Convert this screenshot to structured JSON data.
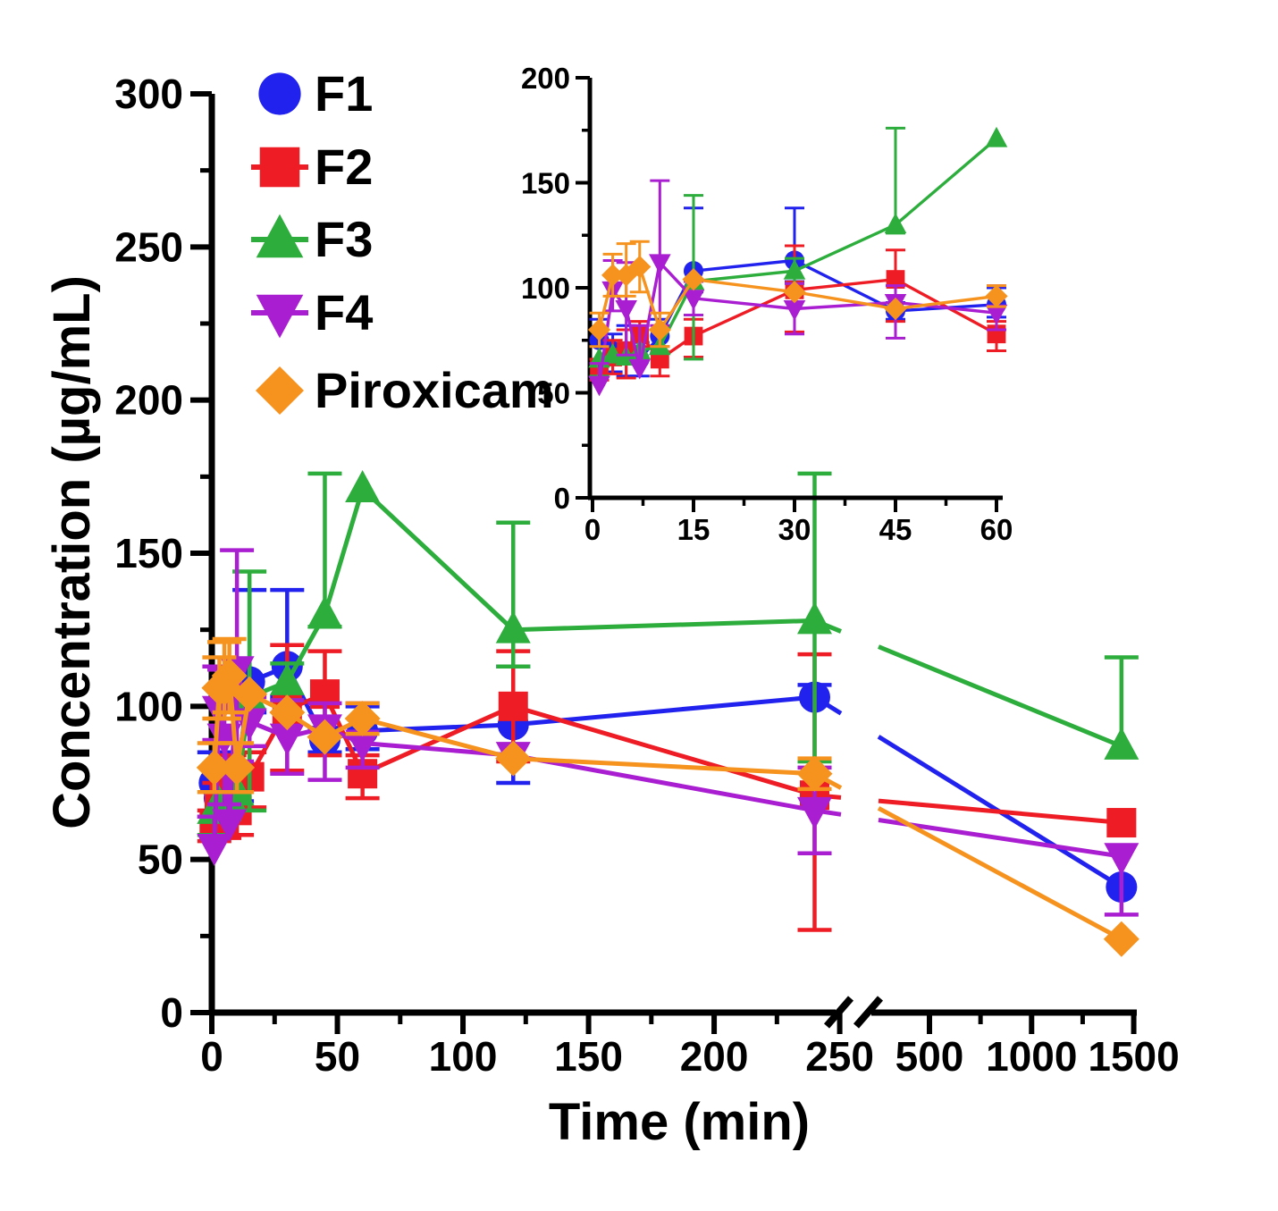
{
  "chart_data": {
    "type": "line",
    "title": "",
    "xlabel": "Time (min)",
    "ylabel": "Concentration (µg/mL)",
    "x_minutes": [
      1,
      3,
      5,
      7,
      10,
      15,
      30,
      45,
      60,
      120,
      240,
      1440
    ],
    "series": [
      {
        "name": "F1",
        "marker": "circle",
        "color": "#2222ee",
        "values": [
          75,
          70,
          70,
          66,
          77,
          108,
          113,
          89,
          92,
          94,
          103,
          41
        ],
        "err_up": [
          10,
          8,
          12,
          8,
          8,
          30,
          25,
          4,
          8,
          19,
          4,
          0
        ],
        "err_down": [
          11,
          10,
          12,
          8,
          8,
          10,
          10,
          4,
          6,
          19,
          0,
          0
        ]
      },
      {
        "name": "F2",
        "marker": "square",
        "color": "#ee1c24",
        "values": [
          61,
          67,
          70,
          78,
          66,
          77,
          99,
          104,
          78,
          100,
          71,
          62
        ],
        "err_up": [
          5,
          8,
          10,
          6,
          6,
          8,
          21,
          14,
          6,
          18,
          46,
          0
        ],
        "err_down": [
          5,
          8,
          13,
          6,
          8,
          10,
          20,
          20,
          8,
          18,
          44,
          0
        ]
      },
      {
        "name": "F3",
        "marker": "triangle-up",
        "color": "#2cad3c",
        "values": [
          66,
          68,
          67,
          70,
          72,
          103,
          108,
          130,
          171,
          125,
          128,
          87
        ],
        "err_up": [
          0,
          0,
          0,
          0,
          0,
          41,
          6,
          46,
          0,
          35,
          48,
          29
        ],
        "err_down": [
          8,
          0,
          0,
          0,
          0,
          37,
          6,
          4,
          0,
          12,
          46,
          0
        ]
      },
      {
        "name": "F4",
        "marker": "triangle-down",
        "color": "#a91ed1",
        "values": [
          54,
          99,
          90,
          62,
          112,
          95,
          90,
          93,
          88,
          84,
          66,
          51
        ],
        "err_up": [
          10,
          14,
          22,
          20,
          39,
          8,
          12,
          8,
          13,
          0,
          14,
          0
        ],
        "err_down": [
          0,
          10,
          22,
          0,
          30,
          8,
          12,
          17,
          8,
          0,
          14,
          19
        ]
      },
      {
        "name": "Piroxicam",
        "marker": "diamond",
        "color": "#f6921e",
        "values": [
          80,
          106,
          106,
          110,
          80,
          104,
          98,
          90,
          96,
          83,
          78,
          24
        ],
        "err_up": [
          8,
          10,
          15,
          12,
          8,
          0,
          0,
          0,
          5,
          0,
          5,
          0
        ],
        "err_down": [
          8,
          10,
          10,
          12,
          8,
          0,
          0,
          0,
          5,
          0,
          5,
          0
        ]
      }
    ],
    "main_axis": {
      "ylim": [
        0,
        300
      ],
      "y_ticks": [
        0,
        50,
        100,
        150,
        200,
        250,
        300
      ],
      "y_minor_step": 25,
      "xlim_seg1": [
        0,
        250
      ],
      "x_ticks_seg1": [
        0,
        50,
        100,
        150,
        200,
        250
      ],
      "x_minor_step_seg1": 25,
      "xlim_seg2": [
        500,
        1500
      ],
      "x_ticks_seg2": [
        500,
        1000,
        1500
      ],
      "x_minor_seg2": [
        750,
        1250
      ],
      "x_break": true
    },
    "inset_axis": {
      "xlim": [
        0,
        60
      ],
      "x_ticks": [
        0,
        15,
        30,
        45,
        60
      ],
      "x_minor_step": 7.5,
      "ylim": [
        0,
        200
      ],
      "y_ticks": [
        0,
        50,
        100,
        150,
        200
      ],
      "y_minor_step": 25
    },
    "legend": {
      "items": [
        "F1",
        "F2",
        "F3",
        "F4",
        "Piroxicam"
      ]
    }
  }
}
